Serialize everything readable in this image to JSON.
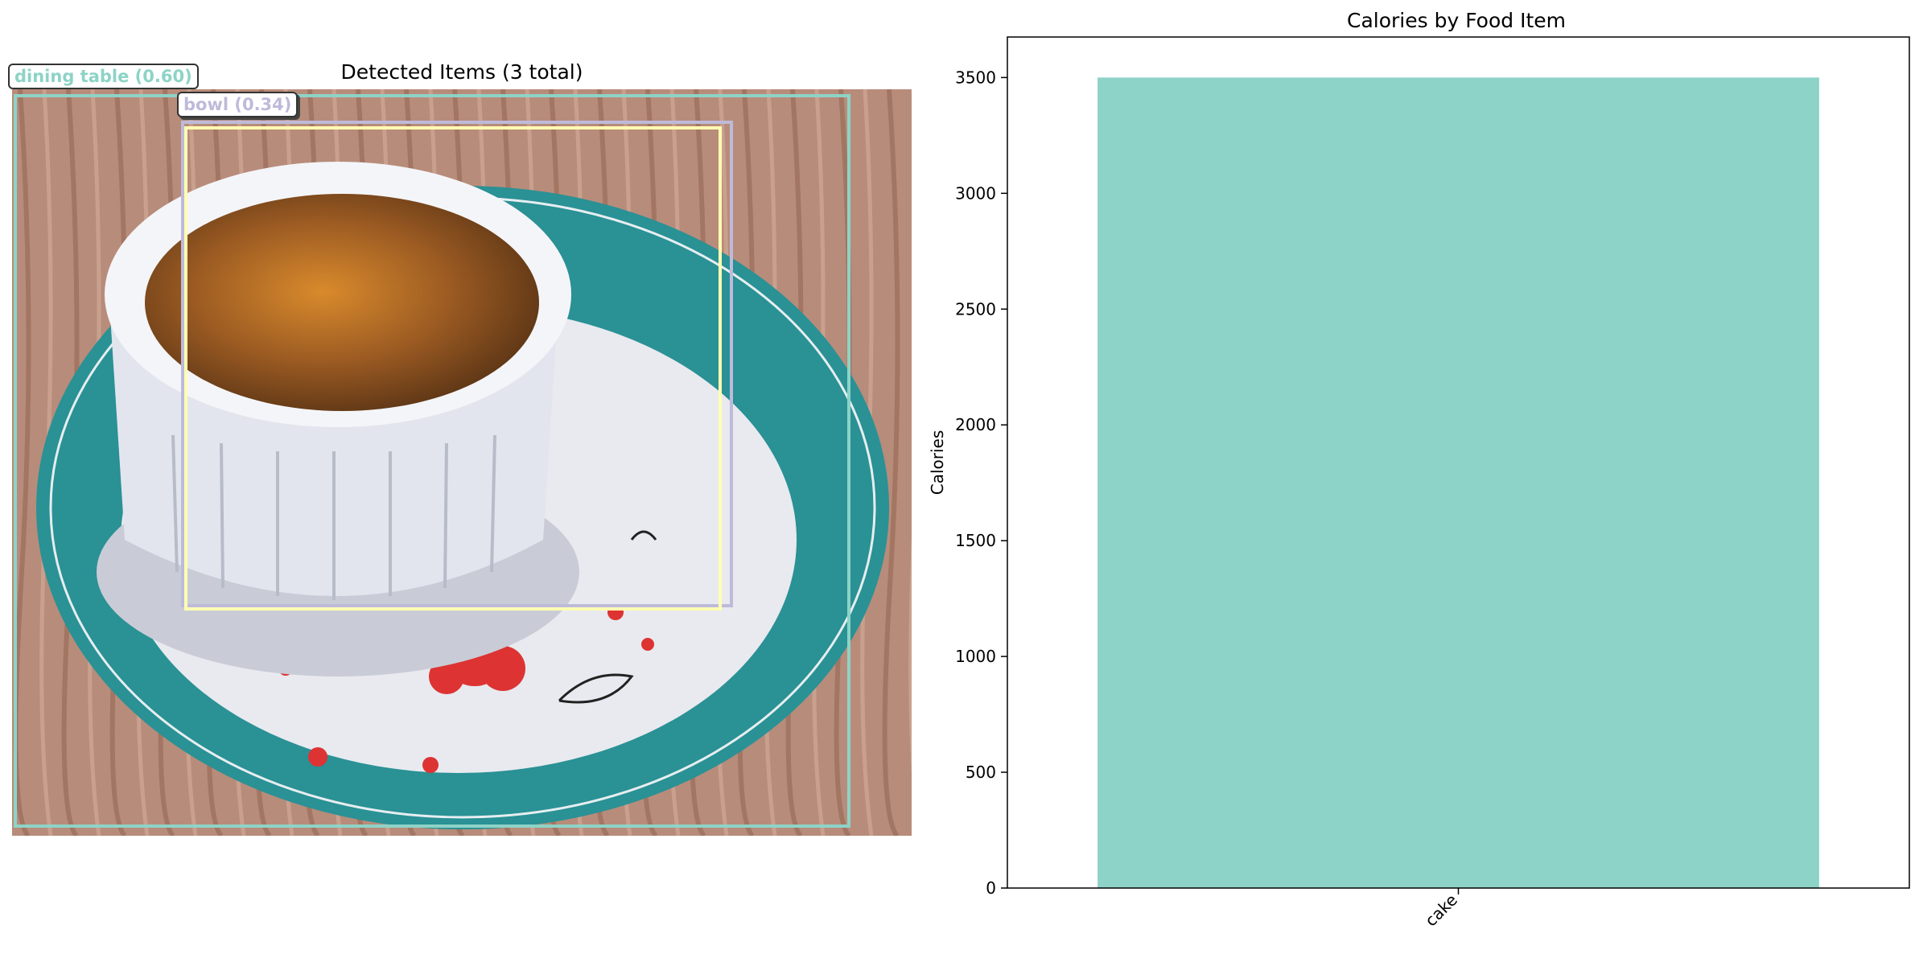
{
  "detection": {
    "title": "Detected Items (3 total)",
    "boxes": [
      {
        "label": "dining table (0.60)",
        "color": "#8dd3c7"
      },
      {
        "label": "bowl (0.34)",
        "color": "#bebada"
      },
      {
        "label": "",
        "color": "#ffffb3"
      }
    ],
    "image_subject": "creme brulee in white ramekin on teal plate, wooden table"
  },
  "chart_data": {
    "type": "bar",
    "title": "Calories by Food Item",
    "categories": [
      "cake"
    ],
    "values": [
      3500
    ],
    "xlabel": "",
    "ylabel": "Calories",
    "ylim": [
      0,
      3675
    ],
    "yticks": [
      0,
      500,
      1000,
      1500,
      2000,
      2500,
      3000,
      3500
    ],
    "bar_color": "#8dd3c7",
    "grid": false
  }
}
